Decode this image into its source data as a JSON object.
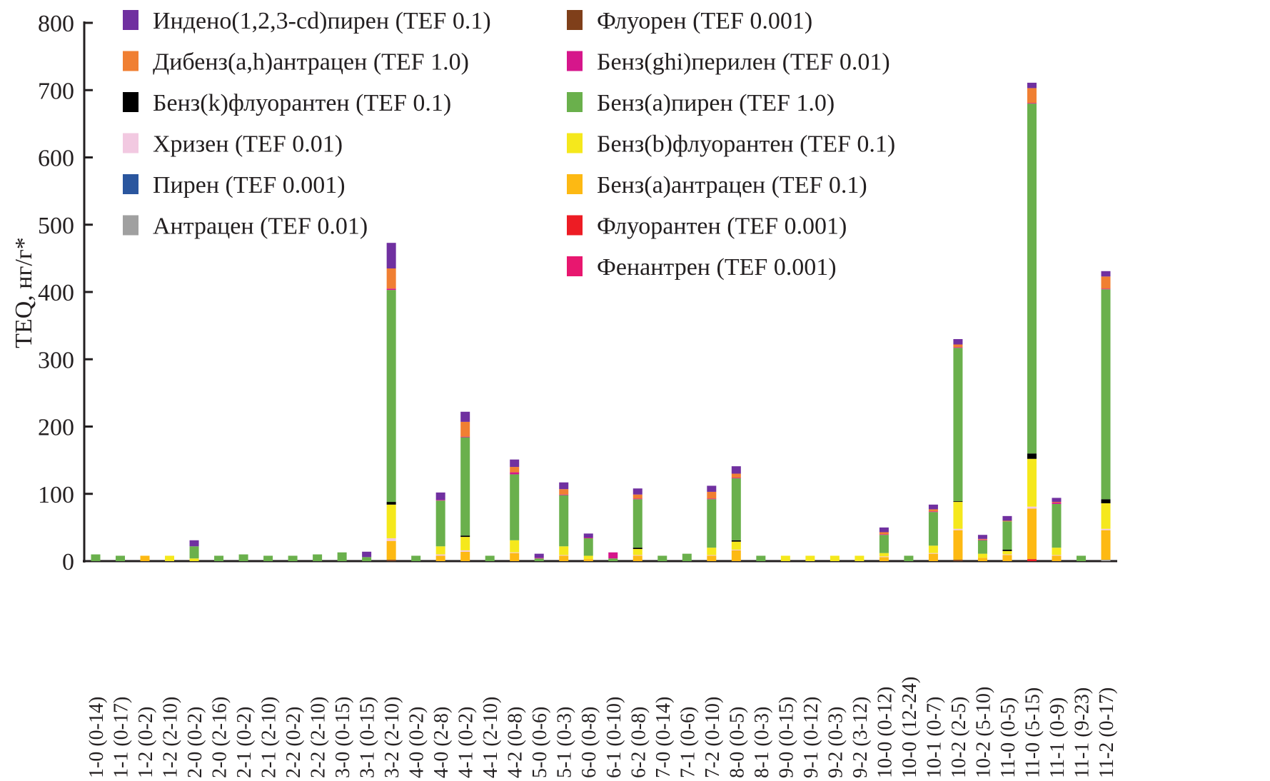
{
  "chart_data": {
    "type": "bar",
    "stacked": true,
    "title": "",
    "xlabel": "",
    "ylabel": "TEQ, нг/г*",
    "ylim": [
      0,
      800
    ],
    "yticks": [
      0,
      100,
      200,
      300,
      400,
      500,
      600,
      700,
      800
    ],
    "grid": false,
    "legend_position": "top-left, two columns",
    "categories": [
      "1-0 (0-14)",
      "1-1 (0-17)",
      "1-2 (0-2)",
      "1-2 (2-10)",
      "2-0 (0-2)",
      "2-0 (2-16)",
      "2-1 (0-2)",
      "2-1 (2-10)",
      "2-2 (0-2)",
      "2-2 (2-10)",
      "3-0 (0-15)",
      "3-1 (0-15)",
      "3-2 (2-10)",
      "4-0 (0-2)",
      "4-0 (2-8)",
      "4-1 (0-2)",
      "4-1 (2-10)",
      "4-2 (0-8)",
      "5-0 (0-6)",
      "5-1 (0-3)",
      "6-0 (0-8)",
      "6-1 (0-10)",
      "6-2 (0-8)",
      "7-0 (0-14)",
      "7-1 (0-6)",
      "7-2 (0-10)",
      "8-0 (0-5)",
      "8-1 (0-3)",
      "9-0 (0-15)",
      "9-1 (0-12)",
      "9-2 (0-3)",
      "9-2 (3-12)",
      "10-0 (0-12)",
      "10-0 (12-24)",
      "10-1 (0-7)",
      "10-2 (2-5)",
      "10-2 (5-10)",
      "11-0 (0-5)",
      "11-0 (5-15)",
      "11-1 (0-9)",
      "11-1 (9-23)",
      "11-2 (0-17)"
    ],
    "series": [
      {
        "name": "Фенантрен (TEF 0.001)",
        "color": "#e8176f",
        "values": [
          0,
          0,
          0,
          0,
          0,
          0,
          0,
          0,
          0,
          0,
          0,
          0,
          0,
          0,
          0,
          0,
          0,
          0,
          0,
          0,
          0,
          0,
          0,
          0,
          0,
          0,
          0,
          0,
          0,
          0,
          0,
          0,
          0,
          0,
          0,
          0,
          0,
          0,
          0,
          0,
          0,
          0
        ]
      },
      {
        "name": "Флуорантен (TEF 0.001)",
        "color": "#ed1c24",
        "values": [
          0,
          0,
          0,
          0,
          0,
          0,
          0,
          0,
          0,
          0,
          0,
          0,
          0,
          0,
          0,
          0,
          0,
          0,
          0,
          0,
          0,
          0,
          0,
          0,
          0,
          0,
          0,
          0,
          0,
          0,
          0,
          0,
          0,
          0,
          0,
          0,
          0,
          0,
          3,
          0,
          0,
          0
        ]
      },
      {
        "name": "Флуорен (TEF 0.001)",
        "color": "#7f3f1a",
        "values": [
          0,
          0,
          0,
          0,
          0,
          0,
          0,
          0,
          0,
          0,
          0,
          0,
          2,
          0,
          0,
          0,
          0,
          0,
          0,
          0,
          0,
          0,
          0,
          0,
          0,
          0,
          0,
          0,
          0,
          0,
          0,
          0,
          0,
          0,
          0,
          2,
          0,
          0,
          0,
          0,
          0,
          0
        ]
      },
      {
        "name": "Антрацен (TEF 0.01)",
        "color": "#a0a0a0",
        "values": [
          0,
          0,
          0,
          0,
          0,
          0,
          0,
          0,
          0,
          0,
          0,
          0,
          0,
          0,
          0,
          0,
          0,
          0,
          0,
          0,
          0,
          0,
          0,
          0,
          0,
          0,
          0,
          0,
          0,
          0,
          0,
          0,
          0,
          0,
          0,
          0,
          0,
          0,
          0,
          0,
          0,
          2
        ]
      },
      {
        "name": "Пирен (TEF 0.001)",
        "color": "#2a569e",
        "values": [
          0,
          0,
          0,
          0,
          0,
          0,
          0,
          0,
          0,
          0,
          0,
          0,
          0,
          0,
          0,
          0,
          0,
          0,
          0,
          0,
          0,
          0,
          0,
          0,
          0,
          0,
          0,
          0,
          0,
          0,
          0,
          0,
          0,
          0,
          0,
          0,
          0,
          0,
          0,
          0,
          0,
          0
        ]
      },
      {
        "name": "Бенз(a)антрацен (TEF 0.1)",
        "color": "#fdb913",
        "values": [
          0,
          0,
          8,
          0,
          0,
          0,
          0,
          0,
          0,
          0,
          0,
          0,
          28,
          0,
          8,
          14,
          0,
          12,
          0,
          8,
          3,
          0,
          8,
          0,
          0,
          8,
          16,
          0,
          0,
          0,
          0,
          0,
          6,
          0,
          11,
          44,
          5,
          9,
          75,
          8,
          0,
          44
        ]
      },
      {
        "name": "Хризен (TEF 0.01)",
        "color": "#f2c9e1",
        "values": [
          0,
          0,
          0,
          0,
          0,
          0,
          0,
          0,
          0,
          0,
          0,
          0,
          4,
          0,
          2,
          2,
          0,
          1,
          0,
          1,
          0,
          0,
          1,
          0,
          0,
          1,
          1,
          0,
          0,
          0,
          0,
          0,
          1,
          0,
          1,
          2,
          0,
          1,
          3,
          1,
          0,
          2
        ]
      },
      {
        "name": "Бенз(b)флуорантен (TEF 0.1)",
        "color": "#f5e81c",
        "values": [
          0,
          0,
          0,
          8,
          4,
          0,
          0,
          0,
          0,
          0,
          0,
          0,
          50,
          0,
          12,
          20,
          0,
          18,
          0,
          13,
          5,
          0,
          9,
          0,
          0,
          11,
          12,
          0,
          8,
          8,
          8,
          8,
          5,
          0,
          11,
          40,
          6,
          5,
          71,
          11,
          0,
          38
        ]
      },
      {
        "name": "Бенз(k)флуорантен (TEF 0.1)",
        "color": "#000000",
        "values": [
          0,
          0,
          0,
          0,
          0,
          0,
          0,
          0,
          0,
          0,
          0,
          0,
          4,
          0,
          0,
          2,
          0,
          0,
          0,
          0,
          0,
          0,
          2,
          0,
          0,
          0,
          2,
          0,
          0,
          0,
          0,
          0,
          0,
          0,
          0,
          1,
          0,
          2,
          8,
          0,
          0,
          6
        ]
      },
      {
        "name": "Бенз(a)пирен (TEF 1.0)",
        "color": "#6ab04c",
        "values": [
          10,
          8,
          0,
          0,
          18,
          8,
          10,
          8,
          8,
          10,
          13,
          6,
          315,
          8,
          68,
          146,
          8,
          98,
          4,
          76,
          26,
          4,
          72,
          8,
          11,
          72,
          92,
          8,
          0,
          0,
          0,
          0,
          27,
          8,
          50,
          228,
          20,
          42,
          520,
          65,
          8,
          312
        ]
      },
      {
        "name": "Бенз(ghi)перилен (TEF 0.01)",
        "color": "#d6168b",
        "values": [
          0,
          0,
          0,
          0,
          0,
          0,
          0,
          0,
          0,
          0,
          0,
          0,
          2,
          0,
          1,
          1,
          0,
          3,
          1,
          1,
          1,
          9,
          1,
          0,
          0,
          1,
          1,
          0,
          0,
          0,
          0,
          0,
          1,
          0,
          1,
          1,
          1,
          0,
          1,
          2,
          0,
          1
        ]
      },
      {
        "name": "Дибенз(a,h)антрацен (TEF 1.0)",
        "color": "#f07f32",
        "values": [
          0,
          0,
          0,
          0,
          0,
          0,
          0,
          0,
          0,
          0,
          0,
          0,
          30,
          0,
          0,
          22,
          0,
          8,
          0,
          8,
          0,
          0,
          6,
          0,
          0,
          10,
          6,
          0,
          0,
          0,
          0,
          0,
          3,
          0,
          3,
          4,
          1,
          1,
          22,
          1,
          0,
          18
        ]
      },
      {
        "name": "Индено(1,2,3-cd)пирен (TEF 0.1)",
        "color": "#7030a0",
        "values": [
          0,
          0,
          0,
          0,
          9,
          0,
          0,
          0,
          0,
          0,
          0,
          8,
          38,
          0,
          11,
          15,
          0,
          11,
          6,
          10,
          6,
          0,
          9,
          0,
          0,
          9,
          11,
          0,
          0,
          0,
          0,
          0,
          7,
          0,
          7,
          8,
          6,
          7,
          8,
          6,
          0,
          8
        ]
      }
    ],
    "legend": {
      "left_column": [
        {
          "label": "Индено(1,2,3-cd)пирен (TEF 0.1)",
          "color": "#7030a0"
        },
        {
          "label": "Дибенз(a,h)антрацен (TEF 1.0)",
          "color": "#f07f32"
        },
        {
          "label": "Бенз(k)флуорантен (TEF 0.1)",
          "color": "#000000"
        },
        {
          "label": "Хризен (TEF 0.01)",
          "color": "#f2c9e1"
        },
        {
          "label": "Пирен (TEF 0.001)",
          "color": "#2a569e"
        },
        {
          "label": "Антрацен (TEF 0.01)",
          "color": "#a0a0a0"
        }
      ],
      "right_column": [
        {
          "label": "Флуорен (TEF 0.001)",
          "color": "#7f3f1a"
        },
        {
          "label": "Бенз(ghi)перилен (TEF 0.01)",
          "color": "#d6168b"
        },
        {
          "label": "Бенз(a)пирен (TEF 1.0)",
          "color": "#6ab04c"
        },
        {
          "label": "Бенз(b)флуорантен (TEF 0.1)",
          "color": "#f5e81c"
        },
        {
          "label": "Бенз(a)антрацен (TEF 0.1)",
          "color": "#fdb913"
        },
        {
          "label": "Флуорантен (TEF 0.001)",
          "color": "#ed1c24"
        },
        {
          "label": "Фенантрен (TEF 0.001)",
          "color": "#e8176f"
        }
      ]
    }
  }
}
